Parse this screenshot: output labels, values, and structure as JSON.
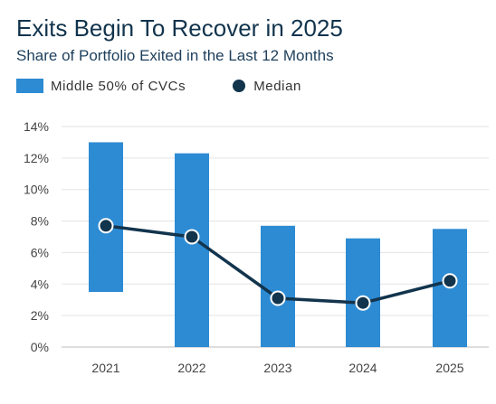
{
  "title": "Exits Begin To Recover in 2025",
  "subtitle": "Share of Portfolio Exited in the Last 12 Months",
  "legend": {
    "range_label": "Middle 50% of CVCs",
    "median_label": "Median"
  },
  "colors": {
    "bar": "#2d8bd3",
    "median": "#12344d",
    "title": "#12344d",
    "grid": "#e3e3e3",
    "axis": "#bdbdbd"
  },
  "chart_data": {
    "type": "bar",
    "categories": [
      "2021",
      "2022",
      "2023",
      "2024",
      "2025"
    ],
    "series": [
      {
        "name": "Middle 50% of CVCs",
        "kind": "floating-range",
        "low": [
          3.5,
          0,
          0,
          0,
          0
        ],
        "high": [
          13.0,
          12.3,
          7.7,
          6.9,
          7.5
        ]
      },
      {
        "name": "Median",
        "kind": "line-with-markers",
        "values": [
          7.7,
          7.0,
          3.1,
          2.8,
          4.2
        ]
      }
    ],
    "ylim": [
      0,
      14
    ],
    "yticks": [
      0,
      2,
      4,
      6,
      8,
      10,
      12,
      14
    ],
    "ytick_labels": [
      "0%",
      "2%",
      "4%",
      "6%",
      "8%",
      "10%",
      "12%",
      "14%"
    ],
    "grid": true,
    "legend_position": "top-left"
  }
}
